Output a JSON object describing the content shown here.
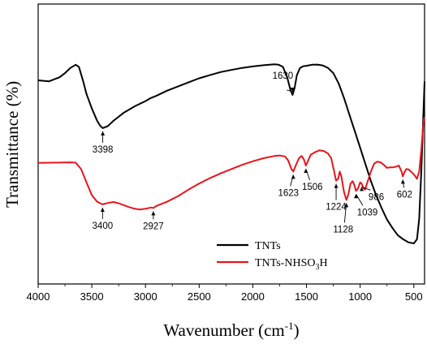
{
  "chart_data": {
    "type": "line",
    "xlabel": "Wavenumber (cm",
    "xlabel_sup": "-1",
    "xlabel_end": ")",
    "ylabel": "Transmittance (%)",
    "xlim": [
      4000,
      400
    ],
    "x_reversed": true,
    "x_ticks": [
      4000,
      3500,
      3000,
      2500,
      2000,
      1500,
      1000,
      500
    ],
    "y_tick_labels": false,
    "grid": false,
    "legend_position": "bottom-right",
    "series": [
      {
        "name": "TNTs",
        "color": "#000000",
        "relative_level": true,
        "points": [
          [
            4000,
            0.785
          ],
          [
            3900,
            0.78
          ],
          [
            3800,
            0.8
          ],
          [
            3750,
            0.82
          ],
          [
            3700,
            0.845
          ],
          [
            3650,
            0.86
          ],
          [
            3620,
            0.85
          ],
          [
            3580,
            0.78
          ],
          [
            3550,
            0.72
          ],
          [
            3500,
            0.65
          ],
          [
            3450,
            0.59
          ],
          [
            3420,
            0.565
          ],
          [
            3398,
            0.555
          ],
          [
            3350,
            0.565
          ],
          [
            3300,
            0.59
          ],
          [
            3200,
            0.63
          ],
          [
            3100,
            0.66
          ],
          [
            3000,
            0.685
          ],
          [
            2950,
            0.7
          ],
          [
            2900,
            0.71
          ],
          [
            2800,
            0.735
          ],
          [
            2700,
            0.755
          ],
          [
            2600,
            0.775
          ],
          [
            2500,
            0.795
          ],
          [
            2400,
            0.81
          ],
          [
            2300,
            0.825
          ],
          [
            2200,
            0.835
          ],
          [
            2100,
            0.845
          ],
          [
            2000,
            0.852
          ],
          [
            1900,
            0.858
          ],
          [
            1800,
            0.862
          ],
          [
            1760,
            0.86
          ],
          [
            1720,
            0.85
          ],
          [
            1680,
            0.8
          ],
          [
            1650,
            0.74
          ],
          [
            1630,
            0.715
          ],
          [
            1610,
            0.75
          ],
          [
            1590,
            0.81
          ],
          [
            1560,
            0.845
          ],
          [
            1530,
            0.853
          ],
          [
            1500,
            0.855
          ],
          [
            1450,
            0.86
          ],
          [
            1400,
            0.861
          ],
          [
            1350,
            0.857
          ],
          [
            1300,
            0.845
          ],
          [
            1250,
            0.82
          ],
          [
            1200,
            0.77
          ],
          [
            1150,
            0.7
          ],
          [
            1100,
            0.62
          ],
          [
            1050,
            0.54
          ],
          [
            1000,
            0.46
          ],
          [
            950,
            0.38
          ],
          [
            900,
            0.3
          ],
          [
            850,
            0.23
          ],
          [
            800,
            0.17
          ],
          [
            750,
            0.115
          ],
          [
            700,
            0.075
          ],
          [
            650,
            0.04
          ],
          [
            600,
            0.02
          ],
          [
            550,
            0.005
          ],
          [
            500,
            0.0
          ],
          [
            470,
            0.02
          ],
          [
            450,
            0.12
          ],
          [
            430,
            0.35
          ],
          [
            410,
            0.64
          ],
          [
            400,
            0.78
          ]
        ]
      },
      {
        "name": "TNTs-NHSO₃H",
        "color": "#e8141c",
        "relative_level": true,
        "points": [
          [
            4000,
            0.492
          ],
          [
            3800,
            0.494
          ],
          [
            3700,
            0.496
          ],
          [
            3650,
            0.493
          ],
          [
            3600,
            0.44
          ],
          [
            3550,
            0.33
          ],
          [
            3500,
            0.225
          ],
          [
            3450,
            0.17
          ],
          [
            3400,
            0.148
          ],
          [
            3350,
            0.16
          ],
          [
            3300,
            0.168
          ],
          [
            3250,
            0.158
          ],
          [
            3200,
            0.14
          ],
          [
            3150,
            0.125
          ],
          [
            3100,
            0.112
          ],
          [
            3050,
            0.106
          ],
          [
            3000,
            0.112
          ],
          [
            2950,
            0.122
          ],
          [
            2927,
            0.118
          ],
          [
            2900,
            0.135
          ],
          [
            2800,
            0.17
          ],
          [
            2700,
            0.215
          ],
          [
            2600,
            0.27
          ],
          [
            2500,
            0.32
          ],
          [
            2400,
            0.365
          ],
          [
            2300,
            0.405
          ],
          [
            2200,
            0.44
          ],
          [
            2100,
            0.475
          ],
          [
            2000,
            0.505
          ],
          [
            1900,
            0.53
          ],
          [
            1800,
            0.548
          ],
          [
            1750,
            0.553
          ],
          [
            1700,
            0.545
          ],
          [
            1670,
            0.51
          ],
          [
            1640,
            0.44
          ],
          [
            1623,
            0.42
          ],
          [
            1600,
            0.47
          ],
          [
            1570,
            0.53
          ],
          [
            1545,
            0.548
          ],
          [
            1525,
            0.52
          ],
          [
            1506,
            0.47
          ],
          [
            1490,
            0.5
          ],
          [
            1460,
            0.56
          ],
          [
            1420,
            0.58
          ],
          [
            1380,
            0.595
          ],
          [
            1340,
            0.59
          ],
          [
            1300,
            0.57
          ],
          [
            1270,
            0.53
          ],
          [
            1245,
            0.43
          ],
          [
            1224,
            0.345
          ],
          [
            1205,
            0.36
          ],
          [
            1190,
            0.42
          ],
          [
            1175,
            0.38
          ],
          [
            1150,
            0.25
          ],
          [
            1128,
            0.185
          ],
          [
            1110,
            0.23
          ],
          [
            1090,
            0.32
          ],
          [
            1070,
            0.34
          ],
          [
            1055,
            0.31
          ],
          [
            1039,
            0.26
          ],
          [
            1020,
            0.28
          ],
          [
            1000,
            0.33
          ],
          [
            986,
            0.32
          ],
          [
            970,
            0.285
          ],
          [
            955,
            0.27
          ],
          [
            940,
            0.31
          ],
          [
            900,
            0.42
          ],
          [
            870,
            0.485
          ],
          [
            840,
            0.502
          ],
          [
            810,
            0.496
          ],
          [
            780,
            0.475
          ],
          [
            750,
            0.45
          ],
          [
            720,
            0.455
          ],
          [
            690,
            0.455
          ],
          [
            660,
            0.462
          ],
          [
            640,
            0.47
          ],
          [
            615,
            0.42
          ],
          [
            602,
            0.38
          ],
          [
            590,
            0.41
          ],
          [
            570,
            0.44
          ],
          [
            550,
            0.438
          ],
          [
            520,
            0.415
          ],
          [
            490,
            0.385
          ],
          [
            470,
            0.36
          ],
          [
            450,
            0.42
          ],
          [
            430,
            0.6
          ],
          [
            415,
            0.78
          ],
          [
            405,
            0.86
          ],
          [
            400,
            0.87
          ]
        ]
      }
    ],
    "annotations": [
      {
        "text": "3398",
        "x": 3398,
        "series": "TNTs"
      },
      {
        "text": "1630",
        "x": 1630,
        "series": "TNTs"
      },
      {
        "text": "3400",
        "x": 3400,
        "series": "TNTs-NHSO₃H"
      },
      {
        "text": "2927",
        "x": 2927,
        "series": "TNTs-NHSO₃H"
      },
      {
        "text": "1623",
        "x": 1623,
        "series": "TNTs-NHSO₃H"
      },
      {
        "text": "1506",
        "x": 1506,
        "series": "TNTs-NHSO₃H"
      },
      {
        "text": "1224",
        "x": 1224,
        "series": "TNTs-NHSO₃H"
      },
      {
        "text": "1128",
        "x": 1128,
        "series": "TNTs-NHSO₃H"
      },
      {
        "text": "1039",
        "x": 1039,
        "series": "TNTs-NHSO₃H"
      },
      {
        "text": "986",
        "x": 986,
        "series": "TNTs-NHSO₃H"
      },
      {
        "text": "602",
        "x": 602,
        "series": "TNTs-NHSO₃H"
      }
    ]
  },
  "legend": {
    "items": [
      {
        "label": "TNTs",
        "color": "#000000"
      },
      {
        "label_main": "TNTs-NHSO",
        "label_sub": "3",
        "label_end": "H",
        "color": "#e8141c"
      }
    ]
  }
}
